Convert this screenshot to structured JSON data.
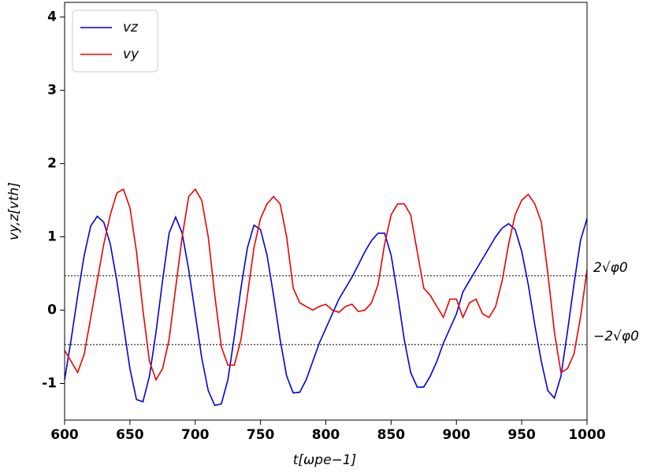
{
  "chart_data": {
    "type": "line",
    "xlabel": "t[ωpe−1]",
    "ylabel": "vy,z[vth]",
    "x": [
      600,
      605,
      610,
      615,
      620,
      625,
      630,
      635,
      640,
      645,
      650,
      655,
      660,
      665,
      670,
      675,
      680,
      685,
      690,
      695,
      700,
      705,
      710,
      715,
      720,
      725,
      730,
      735,
      740,
      745,
      750,
      755,
      760,
      765,
      770,
      775,
      780,
      785,
      790,
      795,
      800,
      805,
      810,
      815,
      820,
      825,
      830,
      835,
      840,
      845,
      850,
      855,
      860,
      865,
      870,
      875,
      880,
      885,
      890,
      895,
      900,
      905,
      910,
      915,
      920,
      925,
      930,
      935,
      940,
      945,
      950,
      955,
      960,
      965,
      970,
      975,
      980,
      985,
      990,
      995,
      1000
    ],
    "series": [
      {
        "name": "vz",
        "color": "#0000dd",
        "values": [
          -0.95,
          -0.4,
          0.2,
          0.75,
          1.15,
          1.28,
          1.2,
          0.9,
          0.4,
          -0.2,
          -0.8,
          -1.22,
          -1.25,
          -0.9,
          -0.3,
          0.4,
          1.05,
          1.27,
          1.05,
          0.55,
          -0.05,
          -0.65,
          -1.1,
          -1.3,
          -1.28,
          -0.95,
          -0.35,
          0.3,
          0.85,
          1.16,
          1.1,
          0.75,
          0.2,
          -0.4,
          -0.9,
          -1.13,
          -1.12,
          -0.95,
          -0.7,
          -0.45,
          -0.25,
          -0.05,
          0.15,
          0.3,
          0.45,
          0.62,
          0.8,
          0.95,
          1.05,
          1.05,
          0.75,
          0.2,
          -0.4,
          -0.85,
          -1.05,
          -1.05,
          -0.9,
          -0.7,
          -0.45,
          -0.25,
          -0.05,
          0.25,
          0.4,
          0.55,
          0.7,
          0.85,
          1.0,
          1.12,
          1.18,
          1.1,
          0.8,
          0.35,
          -0.2,
          -0.7,
          -1.1,
          -1.2,
          -0.9,
          -0.3,
          0.35,
          0.95,
          1.25
        ]
      },
      {
        "name": "vy",
        "color": "#ee0000",
        "values": [
          -0.55,
          -0.7,
          -0.85,
          -0.6,
          -0.1,
          0.4,
          0.9,
          1.3,
          1.6,
          1.65,
          1.4,
          0.8,
          0.0,
          -0.7,
          -0.95,
          -0.8,
          -0.4,
          0.3,
          1.0,
          1.55,
          1.65,
          1.5,
          1.0,
          0.2,
          -0.5,
          -0.75,
          -0.75,
          -0.4,
          0.2,
          0.85,
          1.25,
          1.45,
          1.55,
          1.45,
          1.0,
          0.3,
          0.1,
          0.05,
          0.0,
          0.05,
          0.08,
          0.0,
          -0.03,
          0.05,
          0.08,
          -0.02,
          0.0,
          0.1,
          0.35,
          0.9,
          1.3,
          1.45,
          1.45,
          1.3,
          0.8,
          0.3,
          0.2,
          0.05,
          -0.1,
          0.15,
          0.15,
          -0.1,
          0.1,
          0.15,
          -0.05,
          -0.1,
          0.05,
          0.4,
          0.9,
          1.3,
          1.5,
          1.58,
          1.45,
          1.2,
          0.5,
          -0.3,
          -0.85,
          -0.8,
          -0.6,
          -0.1,
          0.55
        ]
      }
    ],
    "hlines": [
      {
        "value": 0.47,
        "label": "2√φ0"
      },
      {
        "value": -0.47,
        "label": "−2√φ0"
      }
    ],
    "xlim": [
      600,
      1000
    ],
    "ylim": [
      -1.5,
      4.2
    ],
    "xticks": [
      600,
      650,
      700,
      750,
      800,
      850,
      900,
      950,
      1000
    ],
    "yticks": [
      -1,
      0,
      1,
      2,
      3,
      4
    ],
    "legend": "upper left"
  }
}
